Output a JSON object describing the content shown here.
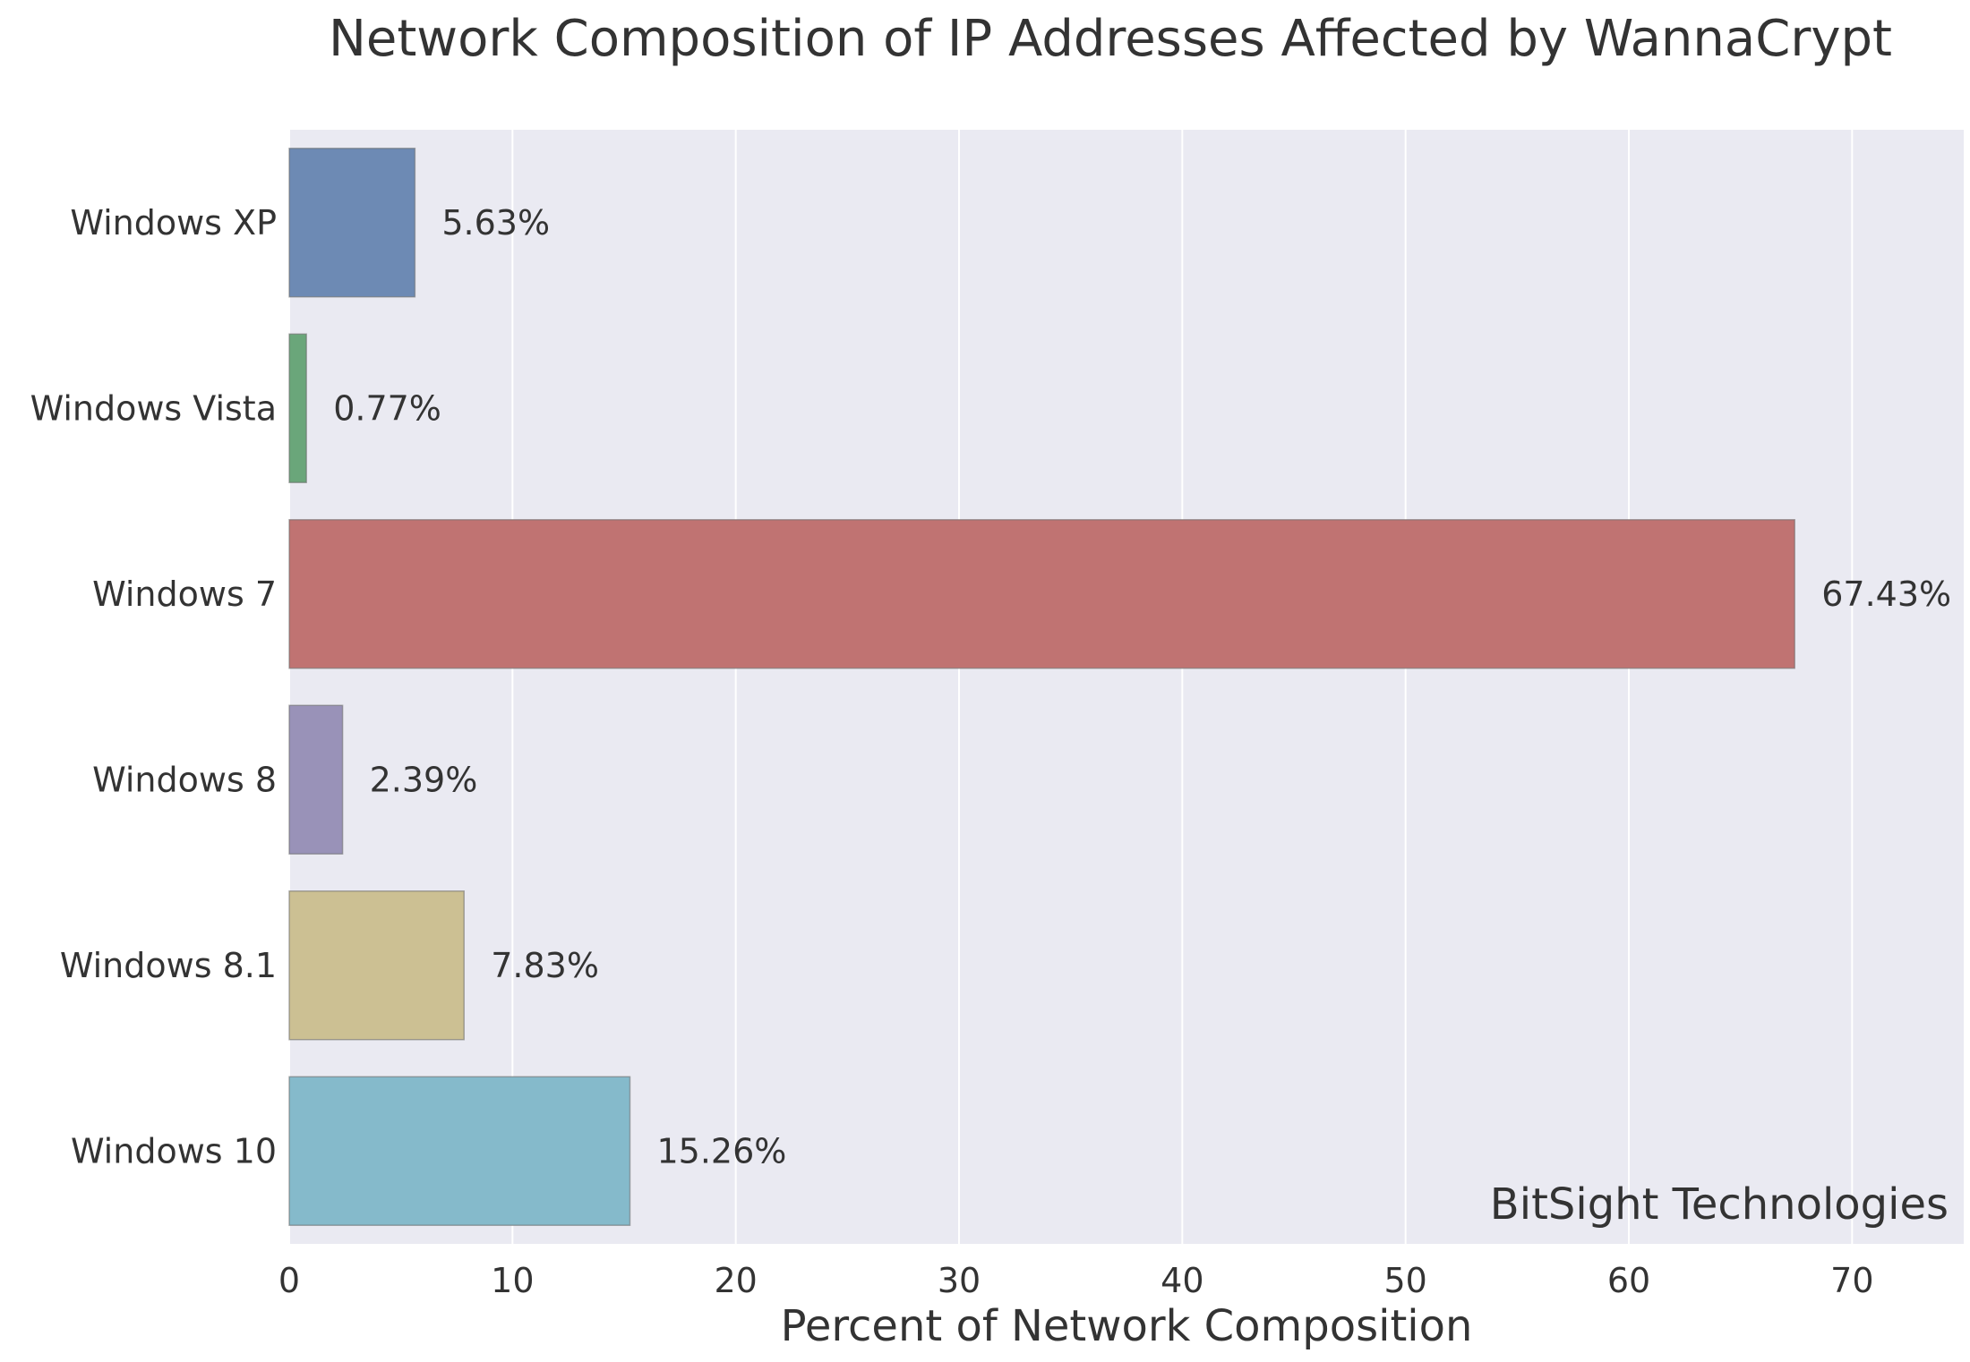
{
  "chart_data": {
    "type": "bar",
    "orientation": "horizontal",
    "title": "Network Composition of IP Addresses Affected by WannaCrypt",
    "xlabel": "Percent of Network Composition",
    "ylabel": "",
    "xlim": [
      0,
      75
    ],
    "xticks": [
      0,
      10,
      20,
      30,
      40,
      50,
      60,
      70
    ],
    "grid": true,
    "categories": [
      "Windows XP",
      "Windows Vista",
      "Windows 7",
      "Windows 8",
      "Windows 8.1",
      "Windows 10"
    ],
    "values": [
      5.63,
      0.77,
      67.43,
      2.39,
      7.83,
      15.26
    ],
    "data_labels": [
      "5.63%",
      "0.77%",
      "67.43%",
      "2.39%",
      "7.83%",
      "15.26%"
    ],
    "colors": [
      "#6d8ab4",
      "#6aa67a",
      "#c07372",
      "#9992b8",
      "#ccc093",
      "#85bacb"
    ],
    "background": "#eaeaf2",
    "annotation": "BitSight Technologies"
  }
}
